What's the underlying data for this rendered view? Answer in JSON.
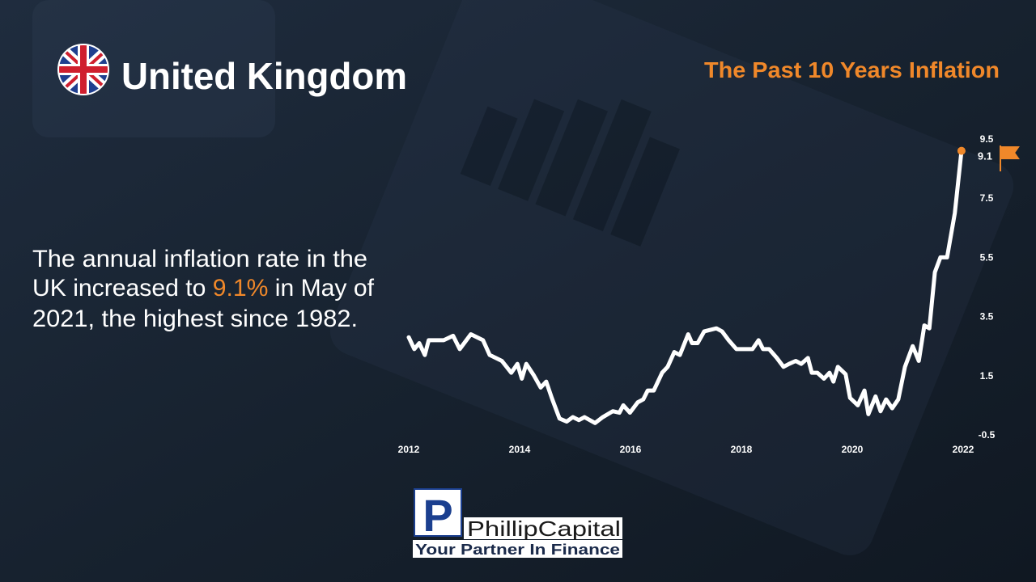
{
  "header": {
    "title": "United Kingdom"
  },
  "description": [
    "The annual inflation rate in the",
    "UK increased to ",
    "9.1%",
    " in May of",
    "2021, the highest since 1982."
  ],
  "logo": {
    "letter": "P",
    "name": "PhillipCapital",
    "tagline": "Your Partner In Finance"
  },
  "chart_data": {
    "type": "line",
    "title": "The Past 10 Years Inflation",
    "x": [
      2012.0,
      2012.1,
      2012.19,
      2012.29,
      2012.36,
      2012.63,
      2012.8,
      2012.92,
      2013.12,
      2013.34,
      2013.46,
      2013.68,
      2013.85,
      2013.96,
      2014.04,
      2014.12,
      2014.26,
      2014.38,
      2014.48,
      2014.58,
      2014.72,
      2014.85,
      2014.96,
      2015.07,
      2015.17,
      2015.36,
      2015.5,
      2015.68,
      2015.8,
      2015.87,
      2015.99,
      2016.13,
      2016.23,
      2016.31,
      2016.42,
      2016.57,
      2016.67,
      2016.79,
      2016.89,
      2017.04,
      2017.11,
      2017.21,
      2017.33,
      2017.55,
      2017.65,
      2017.77,
      2017.91,
      2018.2,
      2018.31,
      2018.39,
      2018.5,
      2018.64,
      2018.76,
      2018.86,
      2018.98,
      2019.08,
      2019.2,
      2019.27,
      2019.37,
      2019.49,
      2019.59,
      2019.66,
      2019.74,
      2019.88,
      2019.96,
      2020.1,
      2020.22,
      2020.29,
      2020.42,
      2020.51,
      2020.61,
      2020.72,
      2020.83,
      2020.95,
      2021.09,
      2021.2,
      2021.3,
      2021.39,
      2021.49,
      2021.59,
      2021.71,
      2021.85,
      2021.97
    ],
    "series": [
      {
        "color": "#ffffff",
        "values": [
          2.8,
          2.4,
          2.6,
          2.2,
          2.7,
          2.7,
          2.85,
          2.4,
          2.9,
          2.7,
          2.2,
          2.0,
          1.6,
          1.9,
          1.4,
          1.9,
          1.5,
          1.1,
          1.3,
          0.75,
          0.05,
          -0.05,
          0.1,
          0.0,
          0.1,
          -0.1,
          0.1,
          0.3,
          0.25,
          0.5,
          0.25,
          0.6,
          0.7,
          1.0,
          1.0,
          1.6,
          1.8,
          2.3,
          2.2,
          2.9,
          2.6,
          2.6,
          3.0,
          3.1,
          3.0,
          2.7,
          2.4,
          2.4,
          2.7,
          2.4,
          2.4,
          2.1,
          1.8,
          1.9,
          2.0,
          1.9,
          2.1,
          1.6,
          1.6,
          1.4,
          1.6,
          1.3,
          1.8,
          1.55,
          0.75,
          0.5,
          1.0,
          0.2,
          0.8,
          0.3,
          0.7,
          0.4,
          0.7,
          1.8,
          2.5,
          2.0,
          3.2,
          3.1,
          5.0,
          5.5,
          5.5,
          7.0,
          9.1
        ]
      }
    ],
    "marker_color": "#f0882a",
    "xlim": [
      2012,
      2022
    ],
    "xticks": [
      2012,
      2014,
      2016,
      2018,
      2020,
      2022
    ],
    "ylim": [
      -0.5,
      9.5
    ],
    "yticks": [
      -0.5,
      1.5,
      3.5,
      5.5,
      7.5,
      9.5
    ]
  }
}
